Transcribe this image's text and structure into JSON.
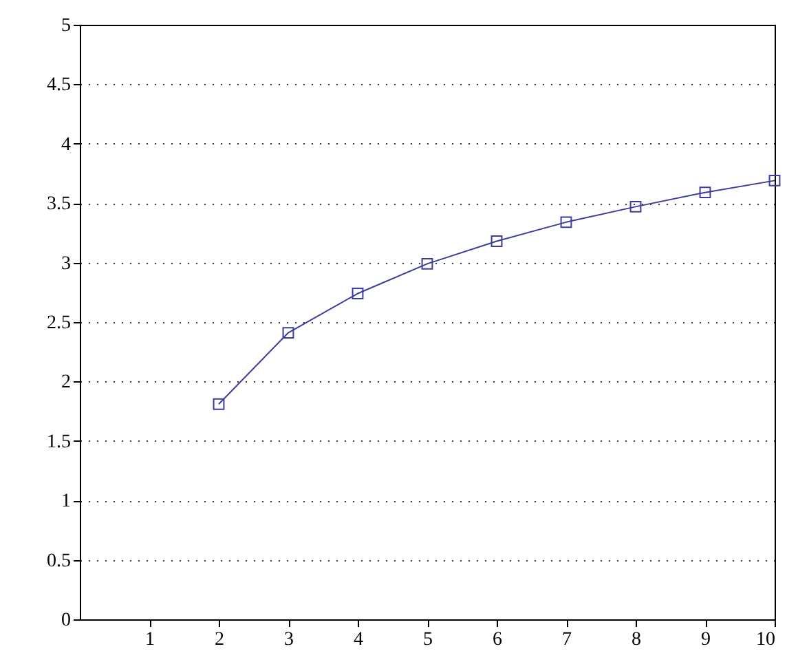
{
  "chart_data": {
    "type": "line",
    "x": [
      2,
      3,
      4,
      5,
      6,
      7,
      8,
      9,
      10
    ],
    "series": [
      {
        "color": "#3c3ca0",
        "values": [
          1.81,
          2.41,
          2.74,
          2.99,
          3.18,
          3.34,
          3.47,
          3.59,
          3.69
        ]
      }
    ],
    "xlim": [
      0,
      10
    ],
    "xticks": [
      1,
      2,
      3,
      4,
      5,
      6,
      7,
      8,
      9,
      10
    ],
    "ylim": [
      0,
      5
    ],
    "yticks": [
      0,
      0.5,
      1,
      1.5,
      2,
      2.5,
      3,
      3.5,
      4,
      4.5,
      5
    ],
    "grid": "y",
    "marker": "square",
    "line_style": "solid"
  }
}
